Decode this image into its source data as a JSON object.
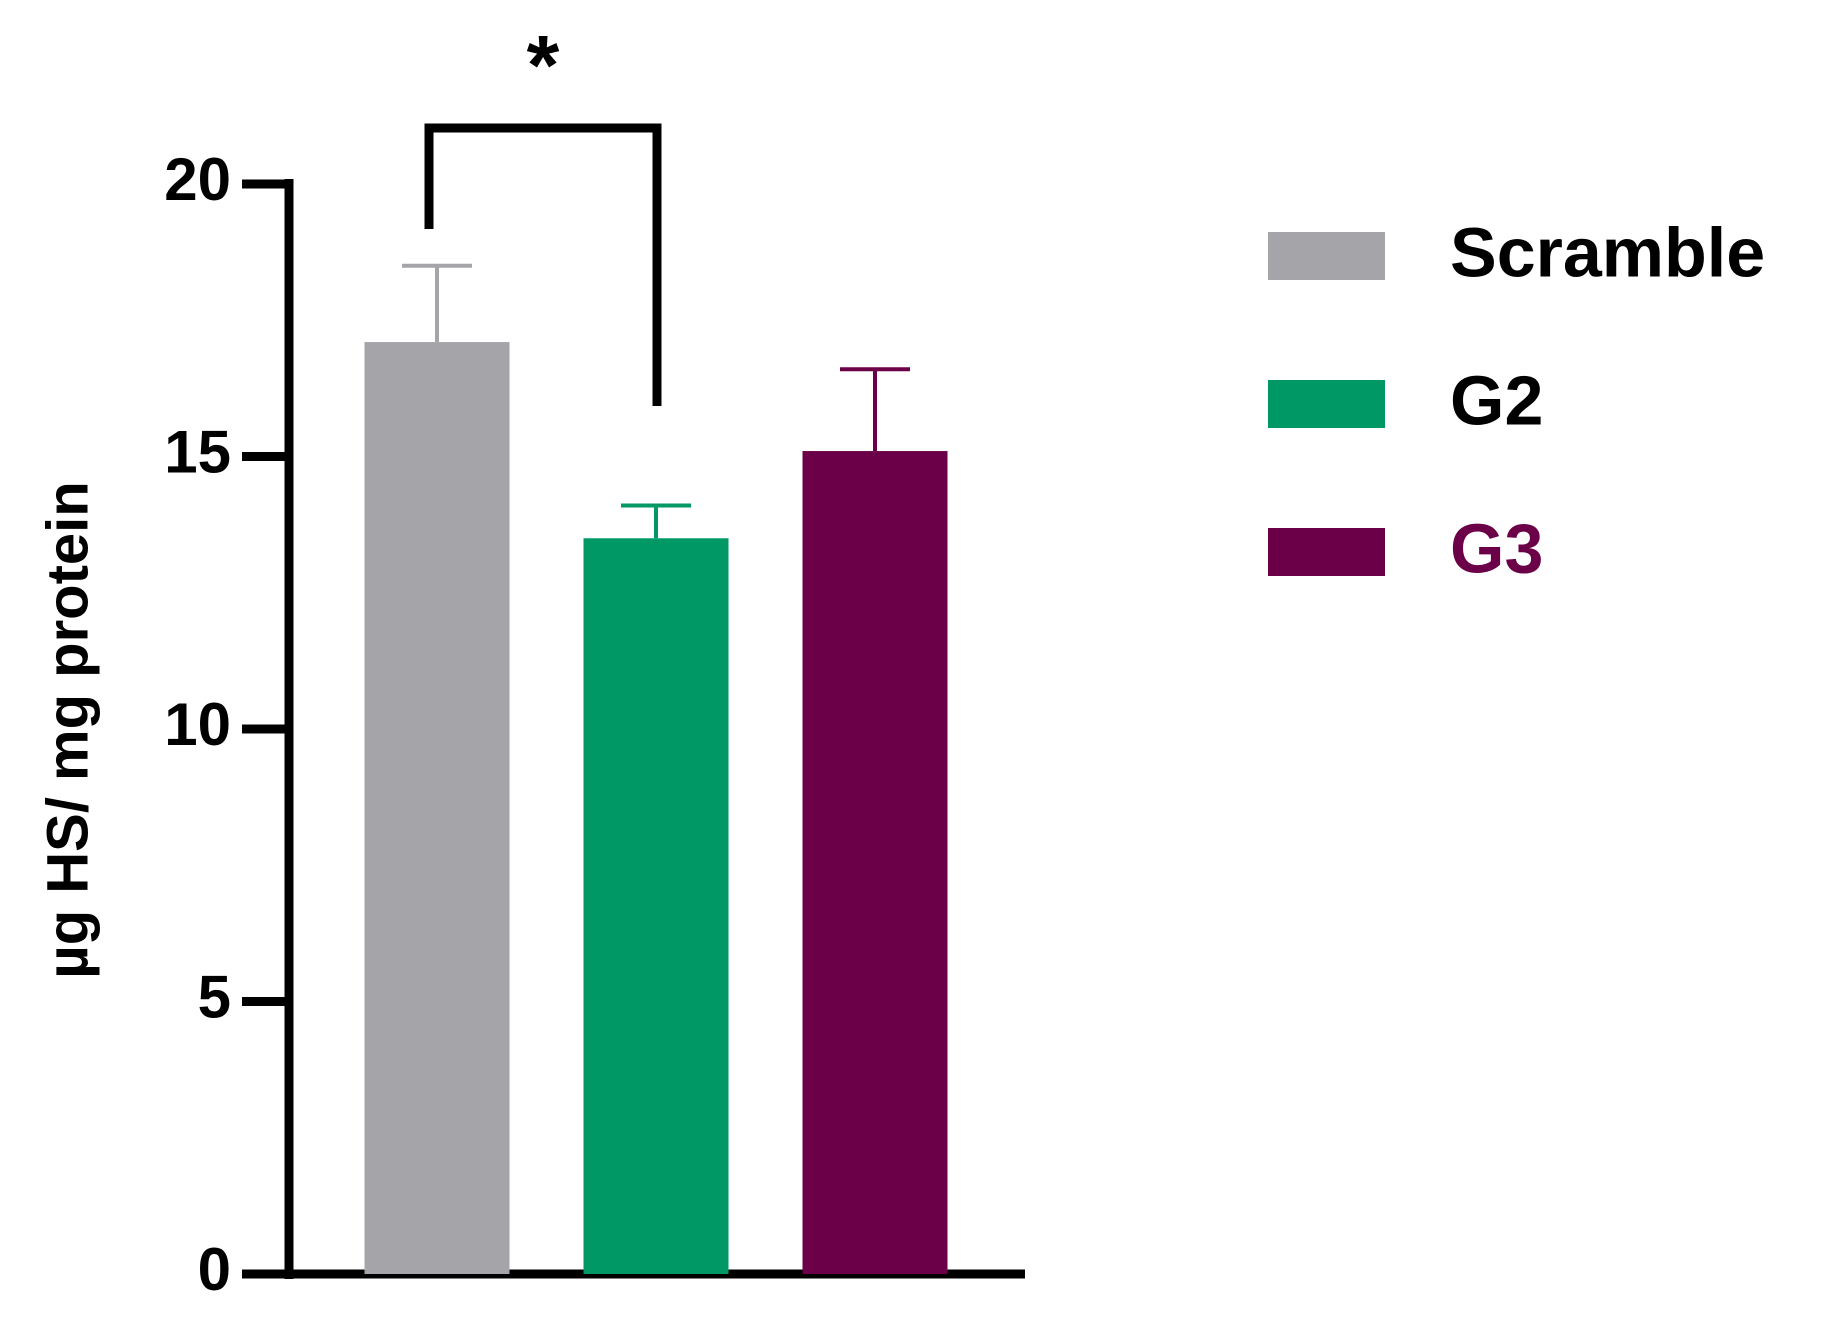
{
  "chart_data": {
    "type": "bar",
    "y_label": "µg HS/ mg protein",
    "series": [
      {
        "name": "Scramble",
        "color": "#a5a4a8",
        "values": [
          17.1
        ],
        "errors": [
          1.4
        ]
      },
      {
        "name": "G2",
        "color": "#009966",
        "values": [
          13.5
        ],
        "errors": [
          0.6
        ]
      },
      {
        "name": "G3",
        "color": "#6b0049",
        "values": [
          15.1
        ],
        "errors": [
          1.5
        ]
      }
    ],
    "ylim": [
      0,
      20
    ],
    "yticks": [
      0,
      5,
      10,
      15,
      20
    ],
    "annotation": "*",
    "legend": "right"
  }
}
